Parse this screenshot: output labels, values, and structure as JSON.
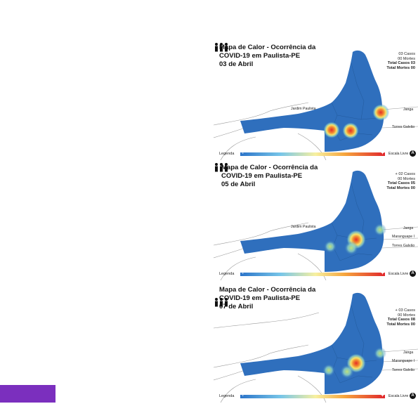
{
  "accent_color": "#7b2fbe",
  "map_color": "#2f6fbd",
  "panels": [
    {
      "title": "Mapa de Calor - Ocorrência da\nCOVID-19 em Paulista-PE\n03 de Abril",
      "cases": "03 Casos",
      "deaths": "00 Mortes",
      "total_cases": "Total Casos 03",
      "total_deaths": "Total Mortes 00",
      "place_jardim": "Jardim Paulista",
      "place_janga": "Janga",
      "place_maranguape": "",
      "place_torres": "Torres Galvão",
      "legend_label": "Legenda",
      "legend_minus": "-",
      "legend_plus": "+",
      "legend_scale": "Escala Livre",
      "north": "A"
    },
    {
      "title": "Mapa de Calor - Ocorrência da\nCOVID-19 em Paulista-PE\n05 de Abril",
      "cases": "+ 02 Casos",
      "deaths": "00 Mortes",
      "total_cases": "Total Casos 05",
      "total_deaths": "Total Mortes 00",
      "place_jardim": "Jardim Paulista",
      "place_janga": "Janga",
      "place_maranguape": "Maranguape I",
      "place_torres": "Torres Galvão",
      "legend_label": "Legenda",
      "legend_minus": "-",
      "legend_plus": "+",
      "legend_scale": "Escala Livre",
      "north": "A"
    },
    {
      "title": "Mapa de Calor - Ocorrência da\nCOVID-19 em Paulista-PE\n07 de Abril",
      "cases": "+ 03 Casos",
      "deaths": "00 Mortes",
      "total_cases": "Total Casos 08",
      "total_deaths": "Total Mortes 00",
      "place_jardim": "Jardim Paulista",
      "place_janga": "Janga",
      "place_maranguape": "Maranguape I",
      "place_torres": "Torres Galvão",
      "legend_label": "Legenda",
      "legend_minus": "-",
      "legend_plus": "+",
      "legend_scale": "Escala Livre",
      "north": "A"
    }
  ]
}
